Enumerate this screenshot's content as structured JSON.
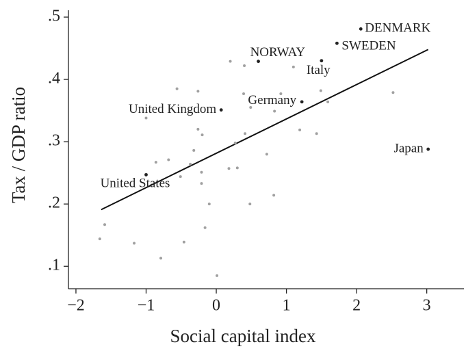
{
  "chart_data": {
    "type": "scatter",
    "xlabel": "Social capital index",
    "ylabel": "Tax / GDP ratio",
    "xlim": [
      -2.107,
      3.53
    ],
    "ylim": [
      0.064,
      0.511
    ],
    "xticks": [
      {
        "value": -2,
        "label": "−2"
      },
      {
        "value": -1,
        "label": "−1"
      },
      0,
      1,
      2,
      3
    ],
    "yticks": [
      {
        "value": 0.1,
        "label": ".1"
      },
      {
        "value": 0.2,
        "label": ".2"
      },
      {
        "value": 0.3,
        "label": ".3"
      },
      {
        "value": 0.4,
        "label": ".4"
      },
      {
        "value": 0.5,
        "label": ".5"
      }
    ],
    "series": [
      {
        "color": "#222222",
        "labels": [
          "DENMARK",
          "SWEDEN",
          "NORWAY",
          "Italy",
          "Germany",
          "United Kingdom",
          "United States",
          "Japan"
        ],
        "x": [
          2.06,
          1.72,
          0.6,
          1.5,
          1.22,
          0.07,
          -1.0,
          3.02
        ],
        "values": [
          0.481,
          0.458,
          0.429,
          0.43,
          0.364,
          0.351,
          0.247,
          0.288
        ]
      },
      {
        "color": "#a0a0a0",
        "x": [
          0.2,
          0.4,
          1.1,
          -0.56,
          -0.26,
          0.39,
          0.92,
          1.49,
          2.52,
          1.59,
          0.49,
          0.83,
          -1.0,
          -0.26,
          1.19,
          0.41,
          -0.2,
          1.43,
          0.27,
          -0.32,
          0.72,
          -0.68,
          -0.86,
          -0.37,
          0.18,
          0.3,
          -0.21,
          -0.51,
          -0.21,
          -0.1,
          0.48,
          0.82,
          -1.59,
          -0.16,
          -1.66,
          -1.17,
          -0.46,
          -0.79,
          0.01
        ],
        "values": [
          0.429,
          0.422,
          0.42,
          0.385,
          0.381,
          0.377,
          0.377,
          0.382,
          0.379,
          0.364,
          0.355,
          0.349,
          0.338,
          0.32,
          0.319,
          0.313,
          0.311,
          0.313,
          0.298,
          0.286,
          0.28,
          0.271,
          0.267,
          0.264,
          0.257,
          0.258,
          0.251,
          0.244,
          0.233,
          0.2,
          0.2,
          0.214,
          0.167,
          0.162,
          0.144,
          0.137,
          0.139,
          0.113,
          0.085
        ]
      }
    ],
    "fit": {
      "color": "#111111",
      "x": [
        -1.64,
        3.02
      ],
      "values": [
        0.191,
        0.448
      ]
    }
  }
}
